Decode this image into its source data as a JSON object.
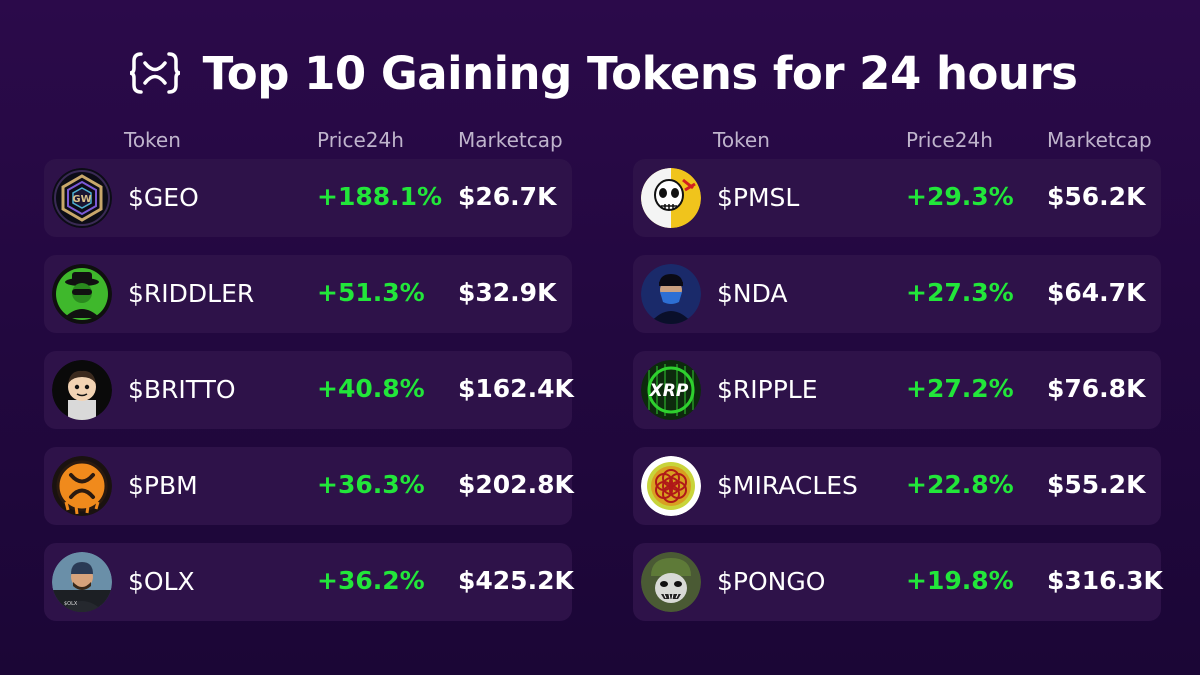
{
  "title": "Top 10 Gaining Tokens for 24 hours",
  "brand_icon": "xrp-curly-brace-logo-icon",
  "colors": {
    "background": "#240841",
    "row_background": "#2e1249",
    "gain": "#22e63a",
    "header_text": "#bfb4cc"
  },
  "headers": {
    "token": "Token",
    "price": "Price24h",
    "marketcap": "Marketcap"
  },
  "left_tokens": [
    {
      "name": "$GEO",
      "price": "+188.1%",
      "mcap": "$26.7K",
      "icon": "geo-hexagon-logo-icon"
    },
    {
      "name": "$RIDDLER",
      "price": "+51.3%",
      "mcap": "$32.9K",
      "icon": "riddler-masked-figure-icon"
    },
    {
      "name": "$BRITTO",
      "price": "+40.8%",
      "mcap": "$162.4K",
      "icon": "britto-cartoon-boy-icon"
    },
    {
      "name": "$PBM",
      "price": "+36.3%",
      "mcap": "$202.8K",
      "icon": "pbm-orange-xrp-logo-icon"
    },
    {
      "name": "$OLX",
      "price": "+36.2%",
      "mcap": "$425.2K",
      "icon": "olx-man-with-beanie-icon"
    }
  ],
  "right_tokens": [
    {
      "name": "$PMSL",
      "price": "+29.3%",
      "mcap": "$56.2K",
      "icon": "pmsl-skull-icon"
    },
    {
      "name": "$NDA",
      "price": "+27.3%",
      "mcap": "$64.7K",
      "icon": "nda-masked-man-icon"
    },
    {
      "name": "$RIPPLE",
      "price": "+27.2%",
      "mcap": "$76.8K",
      "icon": "ripple-green-xrp-logo-icon"
    },
    {
      "name": "$MIRACLES",
      "price": "+22.8%",
      "mcap": "$55.2K",
      "icon": "miracles-flower-of-life-icon"
    },
    {
      "name": "$PONGO",
      "price": "+19.8%",
      "mcap": "$316.3K",
      "icon": "pongo-soldier-creature-icon"
    }
  ]
}
